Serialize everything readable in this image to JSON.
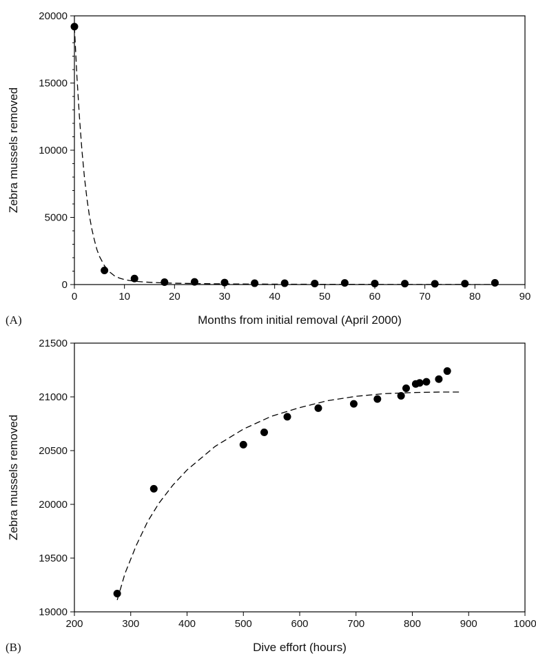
{
  "chart_data": [
    {
      "panel_label": "(A)",
      "type": "scatter",
      "xlabel": "Months from initial removal (April 2000)",
      "ylabel": "Zebra mussels removed",
      "xlim": [
        0,
        90
      ],
      "ylim": [
        0,
        20000
      ],
      "xticks": [
        0,
        10,
        20,
        30,
        40,
        50,
        60,
        70,
        80,
        90
      ],
      "yticks": [
        0,
        5000,
        10000,
        15000,
        20000
      ],
      "y_minor_step": 1000,
      "grid": false,
      "series": [
        {
          "x": [
            0,
            6,
            12,
            18,
            24,
            30,
            36,
            42,
            48,
            54,
            60,
            66,
            72,
            78,
            84
          ],
          "values": [
            19200,
            1050,
            450,
            180,
            200,
            150,
            100,
            100,
            80,
            120,
            80,
            70,
            60,
            70,
            130
          ]
        }
      ],
      "fit_curve": {
        "style": "dashed",
        "x": [
          0,
          0.5,
          1,
          1.5,
          2,
          2.5,
          3,
          3.5,
          4,
          4.5,
          5,
          6,
          7,
          8,
          9,
          10,
          11,
          12,
          14,
          16,
          18,
          20,
          25,
          30,
          40,
          50,
          60,
          70,
          80,
          84
        ],
        "values": [
          19200,
          15500,
          12500,
          10000,
          8000,
          6400,
          5100,
          4100,
          3300,
          2600,
          2100,
          1400,
          950,
          650,
          480,
          370,
          300,
          250,
          190,
          150,
          120,
          100,
          70,
          50,
          30,
          20,
          15,
          10,
          8,
          7
        ]
      }
    },
    {
      "panel_label": "(B)",
      "type": "scatter",
      "xlabel": "Dive effort (hours)",
      "ylabel": "Zebra mussels removed",
      "xlim": [
        200,
        1000
      ],
      "ylim": [
        19000,
        21500
      ],
      "xticks": [
        200,
        300,
        400,
        500,
        600,
        700,
        800,
        900,
        1000
      ],
      "yticks": [
        19000,
        19500,
        20000,
        20500,
        21000,
        21500
      ],
      "grid": false,
      "series": [
        {
          "x": [
            276,
            341,
            500,
            537,
            578,
            633,
            696,
            738,
            780,
            789,
            806,
            813,
            825,
            847,
            862
          ],
          "values": [
            19170,
            20145,
            20555,
            20670,
            20815,
            20895,
            20935,
            20980,
            21010,
            21080,
            21120,
            21130,
            21140,
            21165,
            21240
          ]
        }
      ],
      "fit_curve": {
        "style": "dashed",
        "x": [
          276,
          290,
          310,
          330,
          350,
          375,
          400,
          450,
          500,
          550,
          600,
          650,
          700,
          750,
          800,
          850,
          885
        ],
        "values": [
          19110,
          19360,
          19620,
          19840,
          20010,
          20180,
          20320,
          20540,
          20700,
          20820,
          20900,
          20965,
          21005,
          21030,
          21040,
          21045,
          21045
        ]
      }
    }
  ]
}
